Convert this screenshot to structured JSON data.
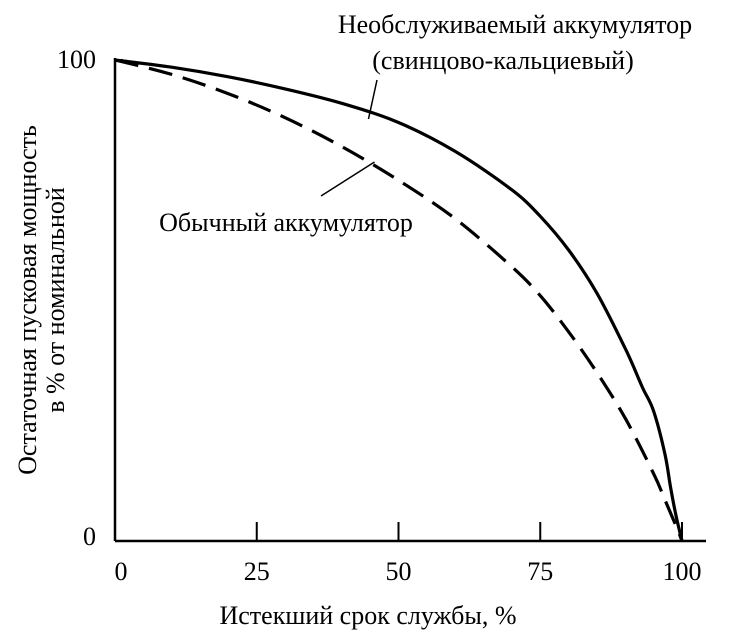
{
  "chart_data": {
    "type": "line",
    "xlabel": "Истекший срок службы, %",
    "ylabel_lines": [
      "Остаточная пусковая мощность",
      "в % от номинальной"
    ],
    "xlim": [
      0,
      100
    ],
    "ylim": [
      0,
      100
    ],
    "x_ticks": [
      0,
      25,
      50,
      75,
      100
    ],
    "x_tick_labels": [
      "0",
      "25",
      "50",
      "75",
      "100"
    ],
    "y_tick_labels": [
      "100",
      "0"
    ],
    "grid": false,
    "series": [
      {
        "name": "Необслуживаемый аккумулятор (свинцово-кальциевый)",
        "style": "solid",
        "color": "#000000",
        "x": [
          0,
          10,
          20,
          30,
          40,
          50,
          60,
          70,
          75,
          80,
          85,
          90,
          93,
          95,
          97,
          98,
          99,
          100
        ],
        "y": [
          100,
          98.5,
          96.5,
          94,
          91,
          87,
          81,
          73,
          67.5,
          60.5,
          51.5,
          40,
          32,
          27,
          18,
          11,
          5,
          0
        ]
      },
      {
        "name": "Обычный аккумулятор",
        "style": "dashed",
        "color": "#000000",
        "x": [
          0,
          10,
          20,
          30,
          40,
          50,
          60,
          70,
          75,
          80,
          85,
          90,
          95,
          97,
          99,
          100
        ],
        "y": [
          100,
          97,
          93,
          88,
          82,
          75,
          67,
          57,
          51,
          43.5,
          35,
          25.5,
          14,
          8.5,
          3,
          0
        ]
      }
    ],
    "annotations": [
      {
        "lines": [
          "Необслуживаемый аккумулятор",
          "(свинцово-кальциевый)"
        ],
        "target_series": 0,
        "target_x": 44
      },
      {
        "lines": [
          "Обычный аккумулятор"
        ],
        "target_series": 1,
        "target_x": 44
      }
    ]
  }
}
